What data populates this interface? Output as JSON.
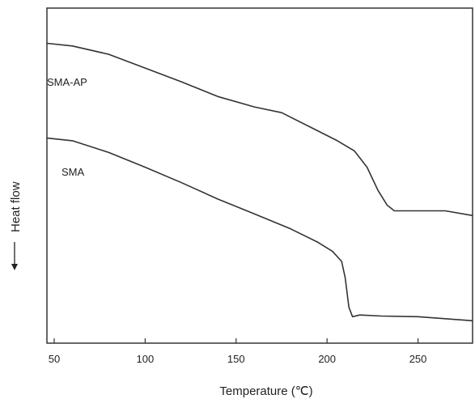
{
  "chart_data": {
    "type": "line",
    "title": "",
    "xlabel": "Temperature (℃)",
    "ylabel": "Heat flow",
    "xlim": [
      46,
      280
    ],
    "ylim": [
      0,
      100
    ],
    "y_ticks_shown": false,
    "x_ticks": [
      50,
      100,
      150,
      200,
      250
    ],
    "x_tick_labels": [
      "50",
      "100",
      "150",
      "200",
      "250"
    ],
    "grid": false,
    "legend": "none",
    "line_color": "#333333",
    "series": [
      {
        "name": "SMA-AP",
        "points": [
          [
            46,
            89.5
          ],
          [
            60,
            88.7
          ],
          [
            80,
            86.2
          ],
          [
            100,
            82.1
          ],
          [
            120,
            78.0
          ],
          [
            140,
            73.6
          ],
          [
            160,
            70.5
          ],
          [
            175,
            68.8
          ],
          [
            190,
            64.7
          ],
          [
            205,
            60.6
          ],
          [
            215,
            57.4
          ],
          [
            222,
            52.5
          ],
          [
            228,
            45.6
          ],
          [
            233,
            41.2
          ],
          [
            237,
            39.5
          ],
          [
            250,
            39.5
          ],
          [
            265,
            39.5
          ],
          [
            280,
            38.1
          ]
        ]
      },
      {
        "name": "SMA",
        "points": [
          [
            46,
            61.2
          ],
          [
            60,
            60.4
          ],
          [
            80,
            56.9
          ],
          [
            100,
            52.5
          ],
          [
            120,
            47.9
          ],
          [
            140,
            43.0
          ],
          [
            160,
            38.6
          ],
          [
            180,
            34.1
          ],
          [
            195,
            30.1
          ],
          [
            203,
            27.4
          ],
          [
            208,
            24.4
          ],
          [
            210,
            19.5
          ],
          [
            212,
            10.8
          ],
          [
            214,
            7.9
          ],
          [
            218,
            8.4
          ],
          [
            230,
            8.1
          ],
          [
            250,
            7.9
          ],
          [
            280,
            6.7
          ]
        ]
      }
    ]
  }
}
